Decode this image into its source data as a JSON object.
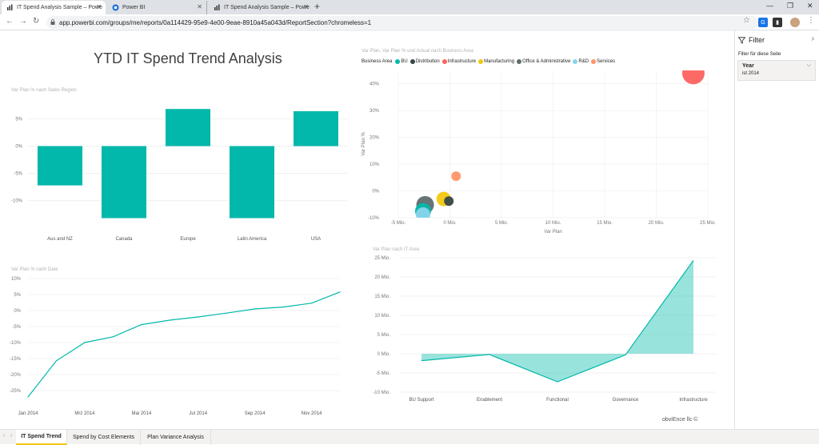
{
  "browser": {
    "tabs": [
      {
        "label": "IT Spend Analysis Sample – Powe",
        "active": true
      },
      {
        "label": "Power BI",
        "active": false
      },
      {
        "label": "IT Spend Analysis Sample – Powe",
        "active": false
      }
    ],
    "url": "app.powerbi.com/groups/me/reports/0a114429-95e9-4e00-9eae-8910a45a043d/ReportSection?chromeless=1"
  },
  "report": {
    "main_title": "YTD IT Spend Trend Analysis",
    "watermark": "obviEnce llc ©"
  },
  "filter": {
    "title": "Filter",
    "subtitle": "Filter für diese Seite",
    "field": "Year",
    "value": "ist 2014"
  },
  "pages": {
    "tabs": [
      "IT Spend Trend",
      "Spend by Cost Elements",
      "Plan Variance Analysis"
    ]
  },
  "chart_data": [
    {
      "type": "bar",
      "title": "Var Plan % nach Sales Region",
      "categories": [
        "Aus and NZ",
        "Canada",
        "Europe",
        "Latin America",
        "USA"
      ],
      "values": [
        -7.2,
        -13.2,
        6.8,
        -13.2,
        6.4
      ],
      "yticks": [
        "5%",
        "0%",
        "-5%",
        "-10%"
      ],
      "color": "#01b8aa"
    },
    {
      "type": "scatter",
      "title": "Var Plan, Var Plan % und Actual nach Business Area",
      "legend_title": "Business Area",
      "legend": [
        {
          "name": "BU",
          "color": "#01b8aa"
        },
        {
          "name": "Distribution",
          "color": "#374649"
        },
        {
          "name": "Infrastructure",
          "color": "#fd625e"
        },
        {
          "name": "Manufacturing",
          "color": "#f2c80f"
        },
        {
          "name": "Office & Administrative",
          "color": "#5f6b6d"
        },
        {
          "name": "R&D",
          "color": "#8ad4eb"
        },
        {
          "name": "Services",
          "color": "#fe9666"
        }
      ],
      "xlabel": "Var Plan",
      "ylabel": "Var Plan %",
      "xticks": [
        "-5 Mio.",
        "0 Mio.",
        "5 Mio.",
        "10 Mio.",
        "15 Mio.",
        "20 Mio.",
        "25 Mio."
      ],
      "yticks": [
        "40%",
        "30%",
        "20%",
        "10%",
        "0%",
        "-10%"
      ],
      "xlim": [
        -5,
        25
      ],
      "ylim": [
        -10,
        45
      ],
      "points": [
        {
          "name": "Infrastructure",
          "x": 23.6,
          "y": 44,
          "size": 14,
          "color": "#fd625e"
        },
        {
          "name": "Services",
          "x": 0.6,
          "y": 5.5,
          "size": 6,
          "color": "#fe9666"
        },
        {
          "name": "Manufacturing",
          "x": -0.6,
          "y": -3,
          "size": 9,
          "color": "#f2c80f"
        },
        {
          "name": "Distribution",
          "x": -0.1,
          "y": -3.8,
          "size": 6,
          "color": "#374649"
        },
        {
          "name": "Office & Administrative",
          "x": -2.4,
          "y": -5.2,
          "size": 11,
          "color": "#5f6b6d"
        },
        {
          "name": "BU",
          "x": -2.6,
          "y": -7.5,
          "size": 10,
          "color": "#01b8aa"
        },
        {
          "name": "R&D",
          "x": -2.6,
          "y": -8.8,
          "size": 9,
          "color": "#8ad4eb"
        }
      ]
    },
    {
      "type": "line",
      "title": "Var Plan % nach Date",
      "x": [
        "Jan 2014",
        "Feb 2014",
        "Mrz 2014",
        "Apr 2014",
        "Mai 2014",
        "Jun 2014",
        "Jul 2014",
        "Aug 2014",
        "Sep 2014",
        "Okt 2014",
        "Nov 2014",
        "Dez 2014"
      ],
      "xticks": [
        "Jan 2014",
        "Mrz 2014",
        "Mai 2014",
        "Jul 2014",
        "Sep 2014",
        "Nov 2014"
      ],
      "values": [
        -27,
        -15.7,
        -10,
        -8.2,
        -4.4,
        -3,
        -2,
        -0.8,
        0.5,
        1.1,
        2.3,
        5.8
      ],
      "yticks": [
        "10%",
        "5%",
        "0%",
        "-5%",
        "-10%",
        "-15%",
        "-20%",
        "-25%"
      ],
      "ylim": [
        -30,
        10
      ],
      "color": "#01b8aa"
    },
    {
      "type": "area",
      "title": "Var Plan nach IT Area",
      "categories": [
        "BU Support",
        "Enablement",
        "Functional",
        "Governance",
        "Infrastructure"
      ],
      "values": [
        -1.8,
        -0.2,
        -7.3,
        -0.3,
        24.3
      ],
      "yticks": [
        "25 Mio.",
        "20 Mio.",
        "15 Mio.",
        "10 Mio.",
        "5 Mio.",
        "0 Mio.",
        "-5 Mio.",
        "-10 Mio."
      ],
      "ylim": [
        -10,
        25
      ],
      "color": "#01b8aa"
    }
  ]
}
